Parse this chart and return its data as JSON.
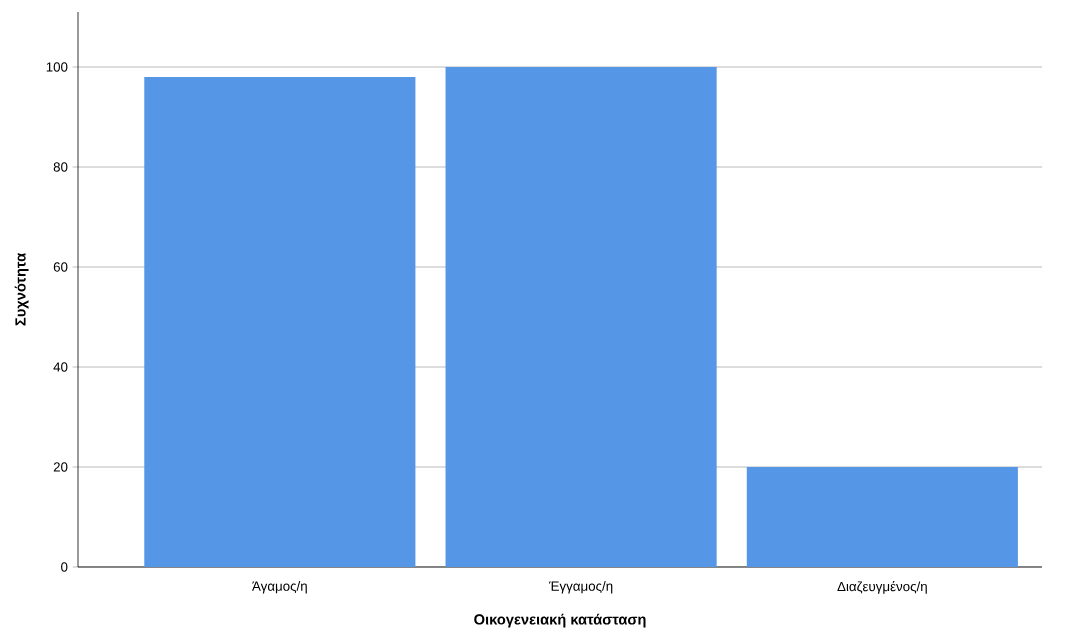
{
  "chart_data": {
    "type": "bar",
    "xlabel": "Οικογενειακή κατάσταση",
    "ylabel": "Συχνότητα",
    "categories": [
      "Άγαμος/η",
      "Έγγαμος/η",
      "Διαζευγμένος/η"
    ],
    "values": [
      98,
      100,
      20
    ],
    "color": "#5596e6",
    "ylim": [
      0,
      111
    ],
    "yticks": [
      0,
      20,
      40,
      60,
      80,
      100
    ],
    "grid": "y"
  }
}
